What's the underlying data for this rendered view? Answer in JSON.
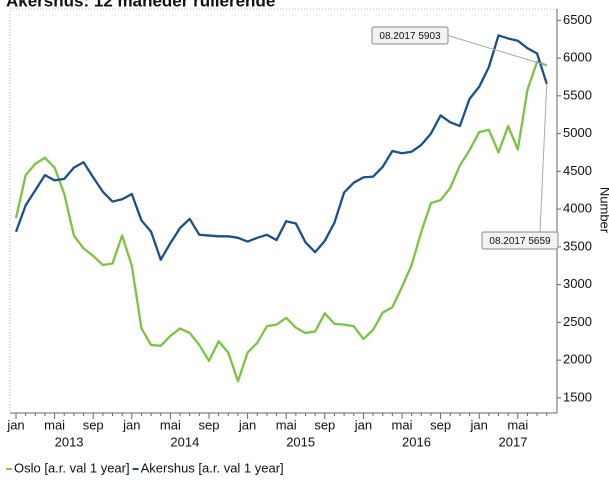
{
  "chart_data": {
    "type": "line",
    "title": "Akershus: 12 måneder rullerende",
    "y_axis_label": "Number",
    "categories": [
      "jan",
      null,
      null,
      null,
      "mai",
      null,
      null,
      null,
      "sep",
      null,
      null,
      null,
      "jan",
      null,
      null,
      null,
      "mai",
      null,
      null,
      null,
      "sep",
      null,
      null,
      null,
      "jan",
      null,
      null,
      null,
      "mai",
      null,
      null,
      null,
      "sep",
      null,
      null,
      null,
      "jan",
      null,
      null,
      null,
      "mai",
      null,
      null,
      null,
      "sep",
      null,
      null,
      null,
      "jan",
      null,
      null,
      null,
      "mai",
      null,
      null,
      null
    ],
    "year_labels": [
      "2013",
      "2014",
      "2015",
      "2016",
      "2017"
    ],
    "series": [
      {
        "name": "Oslo [a.r. val 1 year]",
        "color": "#7dc242",
        "values": [
          3880,
          4450,
          4600,
          4680,
          4550,
          4200,
          3650,
          3480,
          3380,
          3260,
          3280,
          3650,
          3250,
          2420,
          2200,
          2190,
          2320,
          2420,
          2360,
          2200,
          1990,
          2250,
          2100,
          1720,
          2100,
          2230,
          2450,
          2470,
          2560,
          2430,
          2360,
          2380,
          2620,
          2480,
          2470,
          2450,
          2280,
          2400,
          2630,
          2700,
          2970,
          3260,
          3700,
          4080,
          4120,
          4280,
          4580,
          4780,
          5020,
          5050,
          4750,
          5100,
          4790,
          5580,
          5950,
          5903
        ]
      },
      {
        "name": "Akershus [a.r. val 1 year]",
        "color": "#1b4f86",
        "values": [
          3700,
          4050,
          4250,
          4450,
          4380,
          4400,
          4550,
          4620,
          4420,
          4230,
          4100,
          4130,
          4200,
          3850,
          3700,
          3330,
          3550,
          3750,
          3870,
          3660,
          3650,
          3640,
          3640,
          3620,
          3570,
          3620,
          3660,
          3590,
          3840,
          3810,
          3560,
          3430,
          3580,
          3820,
          4220,
          4350,
          4420,
          4430,
          4560,
          4770,
          4740,
          4760,
          4850,
          5000,
          5240,
          5150,
          5100,
          5460,
          5620,
          5880,
          6300,
          6260,
          6230,
          6130,
          6060,
          5659
        ]
      }
    ],
    "annotations": [
      {
        "label": "08.2017 5903",
        "series": 0,
        "index": 55
      },
      {
        "label": "08.2017 5659",
        "series": 1,
        "index": 55
      }
    ],
    "ylim": [
      1300,
      6650
    ],
    "yticks": [
      1500,
      2000,
      2500,
      3000,
      3500,
      4000,
      4500,
      5000,
      5500,
      6000,
      6500
    ]
  }
}
